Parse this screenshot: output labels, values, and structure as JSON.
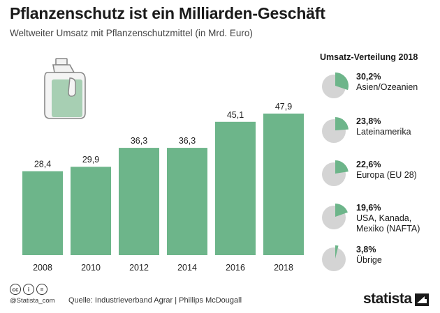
{
  "header": {
    "title": "Pflanzenschutz ist ein Milliarden-Geschäft",
    "subtitle": "Weltweiter Umsatz mit Pflanzenschutzmittel (in Mrd. Euro)"
  },
  "chart_data": [
    {
      "type": "bar",
      "categories": [
        "2008",
        "2010",
        "2012",
        "2014",
        "2016",
        "2018"
      ],
      "values": [
        28.4,
        29.9,
        36.3,
        36.3,
        45.1,
        47.9
      ],
      "value_labels": [
        "28,4",
        "29,9",
        "36,3",
        "36,3",
        "45,1",
        "47,9"
      ],
      "title": "Weltweiter Umsatz mit Pflanzenschutzmittel (in Mrd. Euro)",
      "xlabel": "",
      "ylabel": "",
      "ylim": [
        0,
        50
      ],
      "grid": false,
      "color": "#6db58a"
    },
    {
      "type": "pie",
      "title": "Umsatz-Verteilung 2018",
      "slices": [
        {
          "pct": 30.2,
          "label": "30,2%",
          "name": "Asien/Ozeanien"
        },
        {
          "pct": 23.8,
          "label": "23,8%",
          "name": "Lateinamerika"
        },
        {
          "pct": 22.6,
          "label": "22,6%",
          "name": "Europa (EU 28)"
        },
        {
          "pct": 19.6,
          "label": "19,6%",
          "name": "USA, Kanada, Mexiko (NAFTA)"
        },
        {
          "pct": 3.8,
          "label": "3,8%",
          "name": "Übrige"
        }
      ],
      "colors": {
        "highlight": "#6db58a",
        "rest": "#d4d4d4"
      }
    }
  ],
  "footer": {
    "cc_icons": [
      "cc",
      "i",
      "="
    ],
    "handle": "@Statista_com",
    "source": "Quelle: Industrieverband Agrar | Phillips McDougall",
    "brand": "statista"
  }
}
